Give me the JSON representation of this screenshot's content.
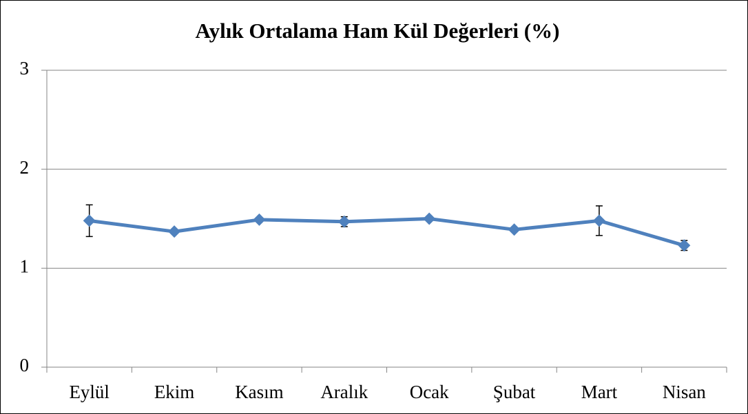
{
  "chart_data": {
    "type": "line",
    "title": "Aylık Ortalama Ham Kül Değerleri (%)",
    "categories": [
      "Eylül",
      "Ekim",
      "Kasım",
      "Aralık",
      "Ocak",
      "Şubat",
      "Mart",
      "Nisan"
    ],
    "series": [
      {
        "color": "#4f81bd",
        "values": [
          1.48,
          1.37,
          1.49,
          1.47,
          1.5,
          1.39,
          1.48,
          1.23
        ],
        "errors": [
          0.16,
          0.02,
          0.01,
          0.05,
          0.01,
          0.01,
          0.15,
          0.05
        ]
      }
    ],
    "ylim": [
      0,
      3
    ],
    "yticks": [
      0,
      1,
      2,
      3
    ],
    "grid": true
  }
}
